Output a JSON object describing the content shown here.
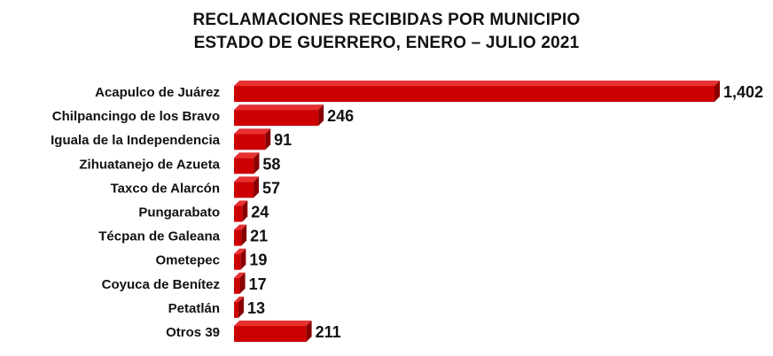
{
  "chart_data": {
    "type": "bar",
    "orientation": "horizontal",
    "title": "RECLAMACIONES RECIBIDAS POR MUNICIPIO",
    "subtitle": "ESTADO DE GUERRERO, ENERO – JULIO 2021",
    "categories": [
      "Acapulco de Juárez",
      "Chilpancingo de los Bravo",
      "Iguala de la Independencia",
      "Zihuatanejo de Azueta",
      "Taxco de Alarcón",
      "Pungarabato",
      "Técpan de Galeana",
      "Ometepec",
      "Coyuca de Benítez",
      "Petatlán",
      "Otros 39"
    ],
    "values": [
      1402,
      246,
      91,
      58,
      57,
      24,
      21,
      19,
      17,
      13,
      211
    ],
    "value_labels": [
      "1,402",
      "246",
      "91",
      "58",
      "57",
      "24",
      "21",
      "19",
      "17",
      "13",
      "211"
    ],
    "xlim": [
      0,
      1402
    ],
    "grid": false,
    "legend": "none",
    "bar_color": "#cc0000",
    "bar_side_color": "#8a0000",
    "bar_top_color": "#e83030"
  }
}
